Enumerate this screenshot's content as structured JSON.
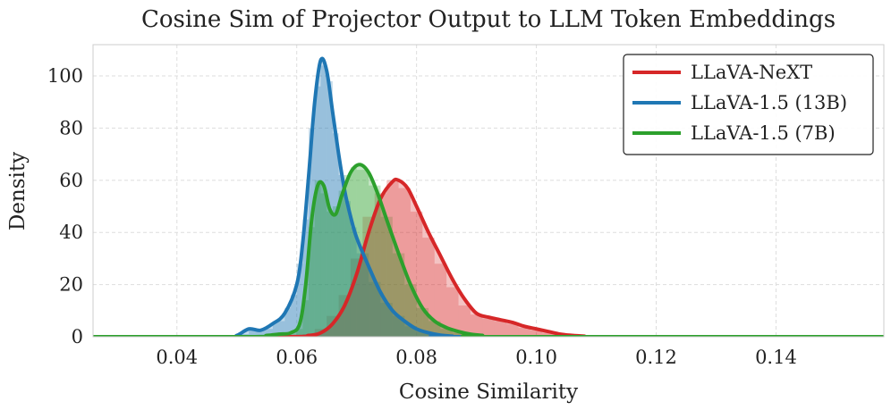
{
  "chart_data": {
    "type": "area",
    "title": "Cosine Sim of Projector Output to LLM Token Embeddings",
    "xlabel": "Cosine Similarity",
    "ylabel": "Density",
    "xlim": [
      0.026,
      0.158
    ],
    "ylim": [
      0,
      112
    ],
    "xticks": [
      0.04,
      0.06,
      0.08,
      0.1,
      0.12,
      0.14
    ],
    "xtick_labels": [
      "0.04",
      "0.06",
      "0.08",
      "0.10",
      "0.12",
      "0.14"
    ],
    "yticks": [
      0,
      20,
      40,
      60,
      80,
      100
    ],
    "ytick_labels": [
      "0",
      "20",
      "40",
      "60",
      "80",
      "100"
    ],
    "grid": true,
    "legend_position": "top-right",
    "series": [
      {
        "name": "LLaVA-NeXT",
        "color": "#d62728",
        "fill": "#f3b9b9",
        "kde": [
          [
            0.026,
            0
          ],
          [
            0.058,
            0
          ],
          [
            0.062,
            0.5
          ],
          [
            0.064,
            1.5
          ],
          [
            0.066,
            5
          ],
          [
            0.068,
            12
          ],
          [
            0.07,
            24
          ],
          [
            0.072,
            40
          ],
          [
            0.074,
            53
          ],
          [
            0.076,
            59.5
          ],
          [
            0.077,
            60
          ],
          [
            0.0785,
            57
          ],
          [
            0.08,
            50
          ],
          [
            0.082,
            40
          ],
          [
            0.084,
            31
          ],
          [
            0.086,
            22
          ],
          [
            0.088,
            14.5
          ],
          [
            0.09,
            9
          ],
          [
            0.092,
            7.5
          ],
          [
            0.094,
            6.5
          ],
          [
            0.096,
            5.5
          ],
          [
            0.098,
            4
          ],
          [
            0.1,
            3
          ],
          [
            0.102,
            2
          ],
          [
            0.104,
            1
          ],
          [
            0.106,
            0.5
          ],
          [
            0.108,
            0.2
          ],
          [
            0.11,
            0
          ],
          [
            0.158,
            0
          ]
        ],
        "hist": [
          [
            0.061,
            0.063,
            1
          ],
          [
            0.063,
            0.065,
            3
          ],
          [
            0.065,
            0.067,
            8
          ],
          [
            0.067,
            0.069,
            16
          ],
          [
            0.069,
            0.071,
            30
          ],
          [
            0.071,
            0.073,
            46
          ],
          [
            0.073,
            0.075,
            55
          ],
          [
            0.075,
            0.077,
            60
          ],
          [
            0.077,
            0.079,
            57
          ],
          [
            0.079,
            0.081,
            48
          ],
          [
            0.081,
            0.083,
            38
          ],
          [
            0.083,
            0.085,
            28
          ],
          [
            0.085,
            0.087,
            19
          ],
          [
            0.087,
            0.089,
            12
          ],
          [
            0.089,
            0.091,
            8.5
          ],
          [
            0.091,
            0.093,
            7
          ],
          [
            0.093,
            0.095,
            6
          ],
          [
            0.095,
            0.097,
            5
          ],
          [
            0.097,
            0.099,
            3.5
          ],
          [
            0.099,
            0.101,
            2.5
          ],
          [
            0.101,
            0.103,
            1.5
          ],
          [
            0.103,
            0.105,
            0.8
          ]
        ]
      },
      {
        "name": "LLaVA-1.5 (13B)",
        "color": "#1f77b4",
        "fill": "#b9d4ea",
        "kde": [
          [
            0.026,
            0
          ],
          [
            0.048,
            0
          ],
          [
            0.05,
            0.5
          ],
          [
            0.052,
            3
          ],
          [
            0.054,
            2.5
          ],
          [
            0.056,
            5
          ],
          [
            0.058,
            9
          ],
          [
            0.06,
            20
          ],
          [
            0.061,
            36
          ],
          [
            0.062,
            62
          ],
          [
            0.063,
            90
          ],
          [
            0.064,
            106
          ],
          [
            0.065,
            102
          ],
          [
            0.066,
            86
          ],
          [
            0.067,
            70
          ],
          [
            0.068,
            56
          ],
          [
            0.069,
            46
          ],
          [
            0.07,
            38
          ],
          [
            0.072,
            27
          ],
          [
            0.074,
            17
          ],
          [
            0.076,
            10
          ],
          [
            0.078,
            6
          ],
          [
            0.08,
            3
          ],
          [
            0.082,
            1.5
          ],
          [
            0.084,
            0.6
          ],
          [
            0.086,
            0.2
          ],
          [
            0.088,
            0
          ],
          [
            0.158,
            0
          ]
        ],
        "hist": [
          [
            0.05,
            0.052,
            1
          ],
          [
            0.052,
            0.054,
            3
          ],
          [
            0.054,
            0.056,
            3
          ],
          [
            0.056,
            0.058,
            6
          ],
          [
            0.058,
            0.059,
            11
          ],
          [
            0.059,
            0.06,
            16
          ],
          [
            0.06,
            0.061,
            28
          ],
          [
            0.061,
            0.062,
            45
          ],
          [
            0.062,
            0.063,
            80
          ],
          [
            0.063,
            0.064,
            96
          ],
          [
            0.064,
            0.065,
            104
          ],
          [
            0.065,
            0.066,
            98
          ],
          [
            0.066,
            0.067,
            78
          ],
          [
            0.067,
            0.068,
            62
          ],
          [
            0.068,
            0.069,
            52
          ],
          [
            0.069,
            0.07,
            42
          ],
          [
            0.07,
            0.072,
            32
          ],
          [
            0.072,
            0.074,
            21
          ],
          [
            0.074,
            0.076,
            13
          ],
          [
            0.076,
            0.078,
            8
          ],
          [
            0.078,
            0.08,
            4
          ],
          [
            0.08,
            0.082,
            2
          ],
          [
            0.082,
            0.084,
            1
          ]
        ]
      },
      {
        "name": "LLaVA-1.5 (7B)",
        "color": "#2ca02c",
        "fill": "#b7e0b7",
        "kde": [
          [
            0.026,
            0
          ],
          [
            0.052,
            0
          ],
          [
            0.055,
            0.5
          ],
          [
            0.057,
            1
          ],
          [
            0.059,
            1.5
          ],
          [
            0.0605,
            5
          ],
          [
            0.0615,
            20
          ],
          [
            0.0625,
            45
          ],
          [
            0.0635,
            58
          ],
          [
            0.0645,
            58
          ],
          [
            0.0655,
            49
          ],
          [
            0.0665,
            47
          ],
          [
            0.0675,
            54
          ],
          [
            0.069,
            63
          ],
          [
            0.0705,
            66
          ],
          [
            0.072,
            63
          ],
          [
            0.0735,
            55
          ],
          [
            0.075,
            45
          ],
          [
            0.077,
            32
          ],
          [
            0.079,
            20
          ],
          [
            0.081,
            11
          ],
          [
            0.083,
            6
          ],
          [
            0.085,
            3.5
          ],
          [
            0.087,
            2
          ],
          [
            0.089,
            1
          ],
          [
            0.091,
            0.5
          ],
          [
            0.093,
            0
          ],
          [
            0.158,
            0
          ]
        ],
        "hist": [
          [
            0.06,
            0.061,
            3
          ],
          [
            0.061,
            0.062,
            14
          ],
          [
            0.062,
            0.063,
            42
          ],
          [
            0.063,
            0.064,
            60
          ],
          [
            0.064,
            0.065,
            55
          ],
          [
            0.065,
            0.066,
            48
          ],
          [
            0.066,
            0.067,
            50
          ],
          [
            0.067,
            0.068,
            56
          ],
          [
            0.068,
            0.069,
            62
          ],
          [
            0.069,
            0.07,
            65
          ],
          [
            0.07,
            0.072,
            64
          ],
          [
            0.072,
            0.074,
            58
          ],
          [
            0.074,
            0.076,
            46
          ],
          [
            0.076,
            0.078,
            32
          ],
          [
            0.078,
            0.08,
            20
          ],
          [
            0.08,
            0.082,
            11
          ],
          [
            0.082,
            0.084,
            6
          ],
          [
            0.084,
            0.086,
            3
          ],
          [
            0.086,
            0.088,
            1.5
          ]
        ]
      }
    ]
  }
}
